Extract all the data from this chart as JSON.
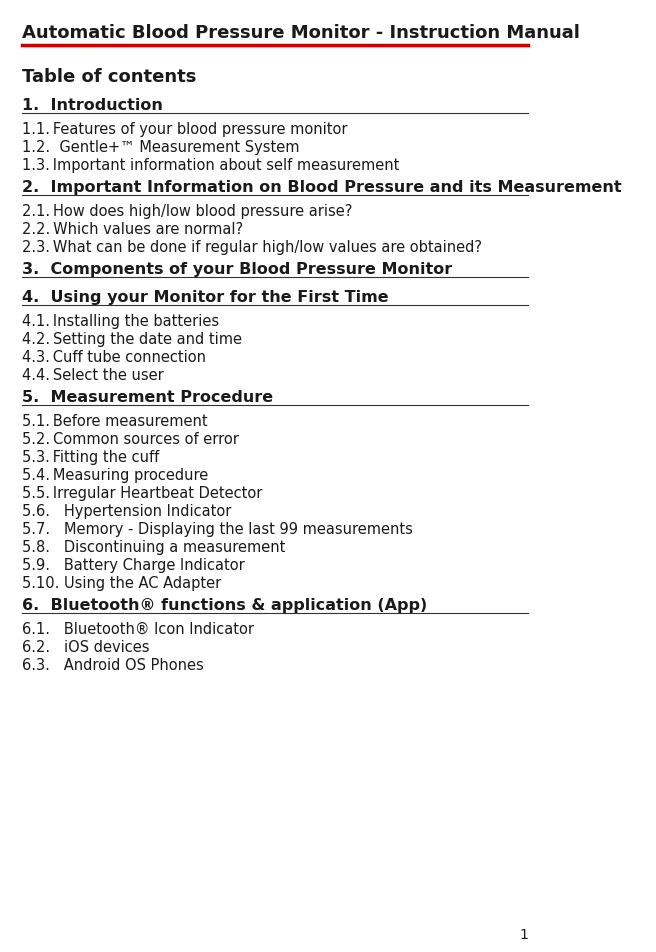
{
  "bg_color": "#ffffff",
  "text_color": "#1a1a1a",
  "title": "Automatic Blood Pressure Monitor - Instruction Manual",
  "toc_label": "Table of contents",
  "title_line_color": "#cc0000",
  "section_line_color": "#333333",
  "sections": [
    {
      "heading": "1.  Introduction",
      "line_below": true,
      "items": [
        "1.1. Features of your blood pressure monitor",
        "1.2.  Gentle+™ Measurement System",
        "1.3. Important information about self measurement"
      ]
    },
    {
      "heading": "2.  Important Information on Blood Pressure and its Measurement",
      "line_below": true,
      "items": [
        "2.1. How does high/low blood pressure arise?",
        "2.2. Which values are normal? ",
        "2.3. What can be done if regular high/low values are obtained?"
      ]
    },
    {
      "heading": "3.  Components of your Blood Pressure Monitor",
      "line_below": true,
      "items": []
    },
    {
      "heading": "4.  Using your Monitor for the First Time",
      "line_below": true,
      "items": [
        "4.1. Installing the batteries",
        "4.2. Setting the date and time",
        "4.3. Cuff tube connection",
        "4.4. Select the user"
      ]
    },
    {
      "heading": "5.  Measurement Procedure",
      "line_below": true,
      "items": [
        "5.1. Before measurement",
        "5.2. Common sources of error",
        "5.3. Fitting the cuff",
        "5.4. Measuring procedure",
        "5.5. Irregular Heartbeat Detector",
        "5.6.   Hypertension Indicator",
        "5.7.   Memory - Displaying the last 99 measurements",
        "5.8.   Discontinuing a measurement",
        "5.9.   Battery Charge Indicator",
        "5.10. Using the AC Adapter"
      ]
    },
    {
      "heading": "6.  Bluetooth® functions & application (App)",
      "line_below": true,
      "items": [
        "6.1.   Bluetooth® Icon Indicator",
        "6.2.   iOS devices",
        "6.3.   Android OS Phones"
      ]
    }
  ],
  "page_number": "1",
  "title_font_size": 13,
  "toc_label_font_size": 13,
  "heading_font_size": 11.5,
  "item_font_size": 10.5,
  "page_num_font_size": 10
}
